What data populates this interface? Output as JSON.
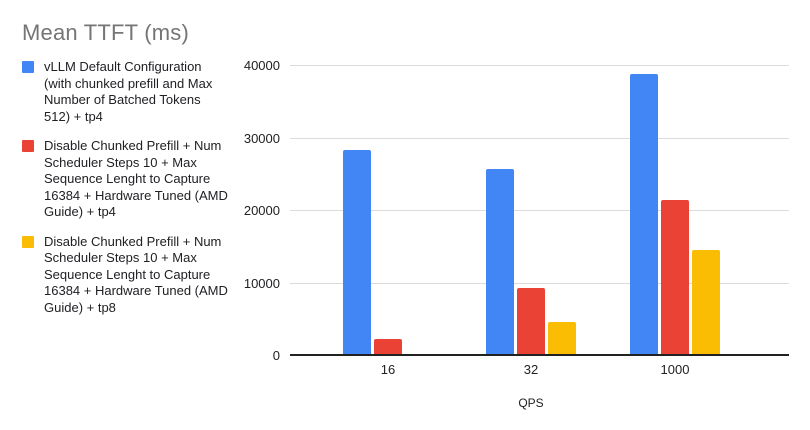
{
  "title": "Mean TTFT (ms)",
  "chart_data": {
    "type": "bar",
    "title": "Mean TTFT (ms)",
    "xlabel": "QPS",
    "ylabel": "",
    "categories": [
      "16",
      "32",
      "1000"
    ],
    "series": [
      {
        "name": "vLLM Default Configuration (with chunked prefill and Max Number of Batched Tokens 512) + tp4",
        "color": "#4285F4",
        "values": [
          28300,
          25700,
          38800
        ]
      },
      {
        "name": "Disable Chunked Prefill + Num Scheduler Steps 10 + Max Sequence Lenght to Capture 16384 + Hardware Tuned (AMD Guide) + tp4",
        "color": "#EA4335",
        "values": [
          2200,
          9300,
          21400
        ]
      },
      {
        "name": "Disable Chunked Prefill + Num Scheduler Steps 10 + Max Sequence Lenght to Capture 16384 + Hardware Tuned (AMD Guide) + tp8",
        "color": "#FBBC04",
        "values": [
          200,
          4600,
          14500
        ]
      }
    ],
    "ylim": [
      0,
      40000
    ],
    "yticks": [
      0,
      10000,
      20000,
      30000,
      40000
    ],
    "grid": true,
    "legend_position": "left",
    "background_color": "#ffffff",
    "title_color": "#757575"
  }
}
